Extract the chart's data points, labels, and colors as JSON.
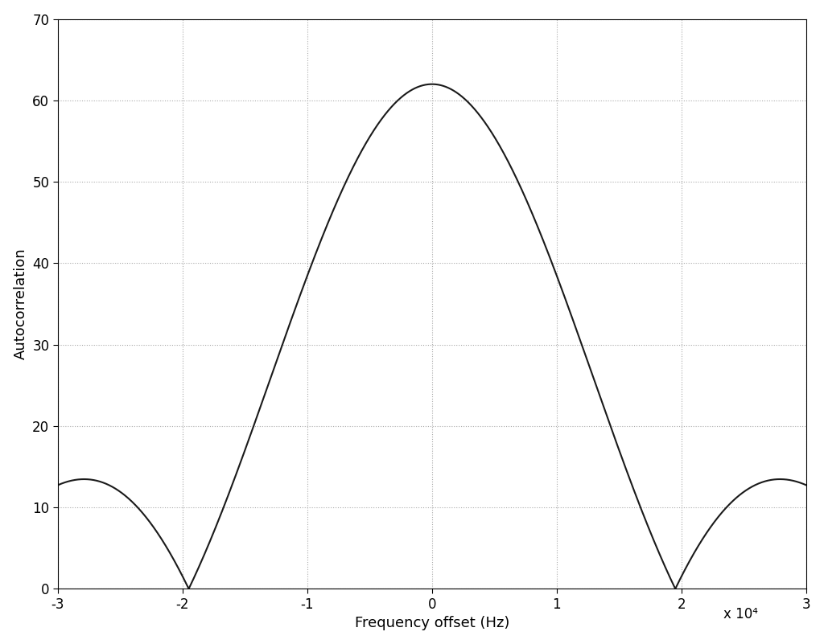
{
  "xlabel": "Frequency offset (Hz)",
  "ylabel": "Autocorrelation",
  "xlim": [
    -30000,
    30000
  ],
  "ylim": [
    0,
    70
  ],
  "xticks": [
    -30000,
    -20000,
    -10000,
    0,
    10000,
    20000,
    30000
  ],
  "xtick_labels": [
    "-3",
    "-2",
    "-1",
    "0",
    "1",
    "2",
    "3"
  ],
  "yticks": [
    0,
    10,
    20,
    30,
    40,
    50,
    60,
    70
  ],
  "scale_label": "x 10⁴",
  "line_color": "#1a1a1a",
  "line_width": 1.5,
  "grid_color": "#aaaaaa",
  "background_color": "#ffffff",
  "peak": 62,
  "f_null": 19500,
  "xlabel_fontsize": 13,
  "ylabel_fontsize": 13,
  "tick_fontsize": 12
}
